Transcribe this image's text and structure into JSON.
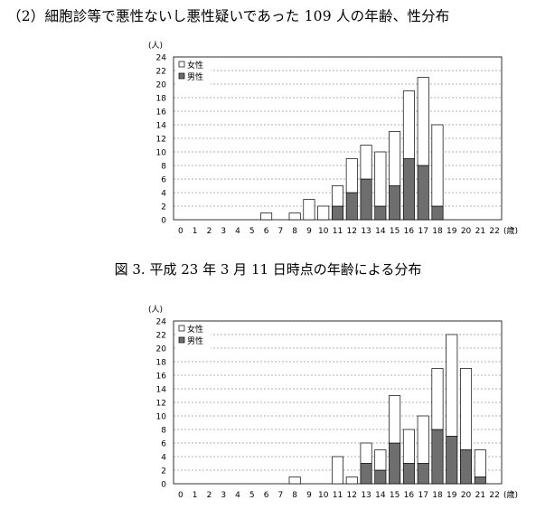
{
  "heading": "（2）細胞診等で悪性ないし悪性疑いであった 109 人の年齢、性分布",
  "caption": "図 3. 平成 23 年 3 月 11 日時点の年齢による分布",
  "colors": {
    "female": "#ffffff",
    "male": "#6e6e6e",
    "grid": "#666666",
    "axis": "#000000"
  },
  "chart_data": [
    {
      "type": "bar",
      "stacked": true,
      "ylabel": "(人)",
      "xlabel": "(歳)",
      "ylim": [
        0,
        24
      ],
      "yticks": [
        0,
        2,
        4,
        6,
        8,
        10,
        12,
        14,
        16,
        18,
        20,
        22,
        24
      ],
      "grid": true,
      "legend_position": "top-left",
      "categories": [
        "0",
        "1",
        "2",
        "3",
        "4",
        "5",
        "6",
        "7",
        "8",
        "9",
        "10",
        "11",
        "12",
        "13",
        "14",
        "15",
        "16",
        "17",
        "18",
        "19",
        "20",
        "21",
        "22"
      ],
      "series": [
        {
          "name": "男性",
          "color": "male",
          "values": [
            0,
            0,
            0,
            0,
            0,
            0,
            0,
            0,
            0,
            0,
            0,
            2,
            4,
            6,
            2,
            5,
            9,
            8,
            2,
            0,
            0,
            0,
            0
          ]
        },
        {
          "name": "女性",
          "color": "female",
          "values": [
            0,
            0,
            0,
            0,
            0,
            0,
            1,
            0,
            1,
            3,
            2,
            3,
            5,
            5,
            8,
            8,
            10,
            13,
            12,
            0,
            0,
            0,
            0
          ]
        }
      ]
    },
    {
      "type": "bar",
      "stacked": true,
      "ylabel": "(人)",
      "xlabel": "(歳)",
      "ylim": [
        0,
        24
      ],
      "yticks": [
        0,
        2,
        4,
        6,
        8,
        10,
        12,
        14,
        16,
        18,
        20,
        22,
        24
      ],
      "grid": true,
      "legend_position": "top-left",
      "categories": [
        "0",
        "1",
        "2",
        "3",
        "4",
        "5",
        "6",
        "7",
        "8",
        "9",
        "10",
        "11",
        "12",
        "13",
        "14",
        "15",
        "16",
        "17",
        "18",
        "19",
        "20",
        "21",
        "22"
      ],
      "series": [
        {
          "name": "男性",
          "color": "male",
          "values": [
            0,
            0,
            0,
            0,
            0,
            0,
            0,
            0,
            0,
            0,
            0,
            0,
            0,
            3,
            2,
            6,
            3,
            3,
            8,
            7,
            5,
            1,
            0
          ]
        },
        {
          "name": "女性",
          "color": "female",
          "values": [
            0,
            0,
            0,
            0,
            0,
            0,
            0,
            0,
            1,
            0,
            0,
            4,
            1,
            3,
            3,
            7,
            5,
            7,
            9,
            15,
            12,
            4,
            0
          ]
        }
      ]
    }
  ]
}
